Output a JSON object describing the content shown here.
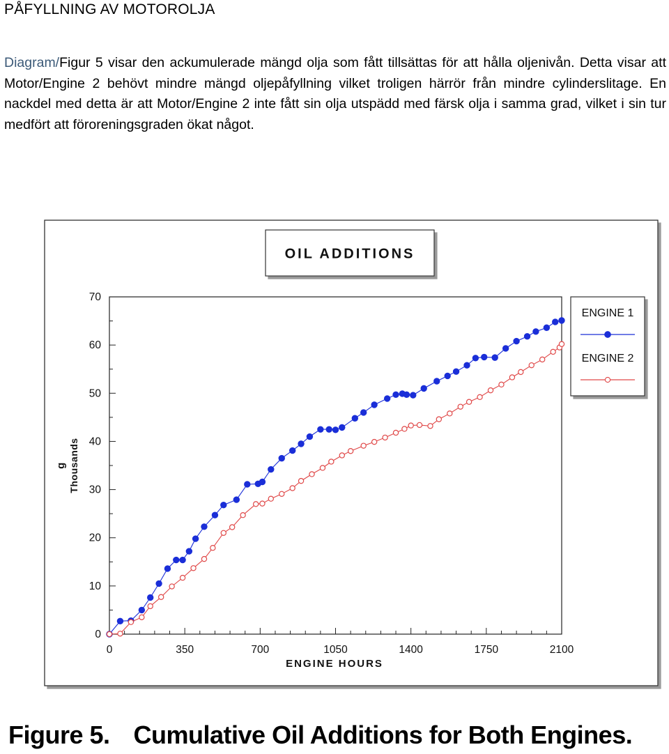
{
  "document": {
    "heading": "PÅFYLLNING AV MOTOROLJA",
    "intro_highlight": "Diagram/",
    "intro_text": "Figur 5 visar den ackumulerade mängd olja som fått tillsättas för att hålla oljenivån. Detta visar att Motor/Engine 2 behövt mindre mängd oljepåfyllning vilket troligen härrör från mindre cylinderslitage. En nackdel med detta är att Motor/Engine 2 inte fått sin olja utspädd med färsk olja i samma grad, vilket i sin tur medfört att föroreningsgraden ökat något.",
    "caption_label": "Figure 5.",
    "caption_text": "Cumulative Oil Additions for Both Engines."
  },
  "chart_data": {
    "type": "line",
    "title": "OIL ADDITIONS",
    "xlabel": "ENGINE HOURS",
    "ylabel": "g",
    "ylabel_units": "Thousands",
    "xlim": [
      0,
      2100
    ],
    "ylim": [
      0,
      70
    ],
    "x_ticks": [
      "0",
      "350",
      "700",
      "1050",
      "1400",
      "1750",
      "2100"
    ],
    "y_ticks": [
      "0",
      "10",
      "20",
      "30",
      "40",
      "50",
      "60",
      "70"
    ],
    "legend": "right",
    "series": [
      {
        "name": "ENGINE 1",
        "color": "#1a2ed8",
        "marker": "filled-circle",
        "x": [
          0,
          50,
          100,
          150,
          190,
          230,
          270,
          310,
          340,
          370,
          400,
          440,
          490,
          530,
          590,
          640,
          690,
          710,
          750,
          800,
          850,
          890,
          930,
          980,
          1020,
          1050,
          1080,
          1140,
          1180,
          1230,
          1290,
          1330,
          1360,
          1380,
          1410,
          1460,
          1520,
          1570,
          1610,
          1660,
          1700,
          1740,
          1790,
          1840,
          1890,
          1940,
          1980,
          2030,
          2070,
          2100
        ],
        "y": [
          0,
          2.7,
          2.8,
          5.0,
          7.6,
          10.5,
          13.6,
          15.4,
          15.4,
          17.2,
          19.8,
          22.3,
          24.7,
          26.8,
          27.9,
          31.1,
          31.2,
          31.6,
          34.2,
          36.5,
          38.1,
          39.5,
          41.0,
          42.5,
          42.5,
          42.4,
          42.9,
          44.8,
          46.0,
          47.6,
          48.9,
          49.7,
          49.9,
          49.7,
          49.6,
          51.0,
          52.5,
          53.6,
          54.5,
          55.8,
          57.3,
          57.5,
          57.4,
          59.3,
          60.8,
          61.8,
          62.8,
          63.6,
          64.8,
          65.1
        ]
      },
      {
        "name": "ENGINE 2",
        "color": "#e04848",
        "marker": "open-circle",
        "x": [
          0,
          50,
          100,
          150,
          190,
          240,
          290,
          340,
          390,
          440,
          480,
          530,
          570,
          620,
          680,
          710,
          750,
          800,
          850,
          890,
          940,
          990,
          1030,
          1080,
          1120,
          1180,
          1230,
          1280,
          1330,
          1370,
          1400,
          1440,
          1490,
          1530,
          1580,
          1630,
          1670,
          1720,
          1770,
          1820,
          1870,
          1910,
          1960,
          2010,
          2060,
          2090,
          2100
        ],
        "y": [
          0,
          0.1,
          2.5,
          3.5,
          5.8,
          7.7,
          9.9,
          11.7,
          13.7,
          15.6,
          17.9,
          21.0,
          22.2,
          24.7,
          27.0,
          27.1,
          28.1,
          29.1,
          30.3,
          31.8,
          33.2,
          34.5,
          35.8,
          37.1,
          38.0,
          39.1,
          39.9,
          40.8,
          41.8,
          42.6,
          43.3,
          43.4,
          43.2,
          44.6,
          45.8,
          47.2,
          48.2,
          49.2,
          50.6,
          51.8,
          53.3,
          54.4,
          55.8,
          57.0,
          58.6,
          59.5,
          60.2
        ]
      }
    ]
  }
}
